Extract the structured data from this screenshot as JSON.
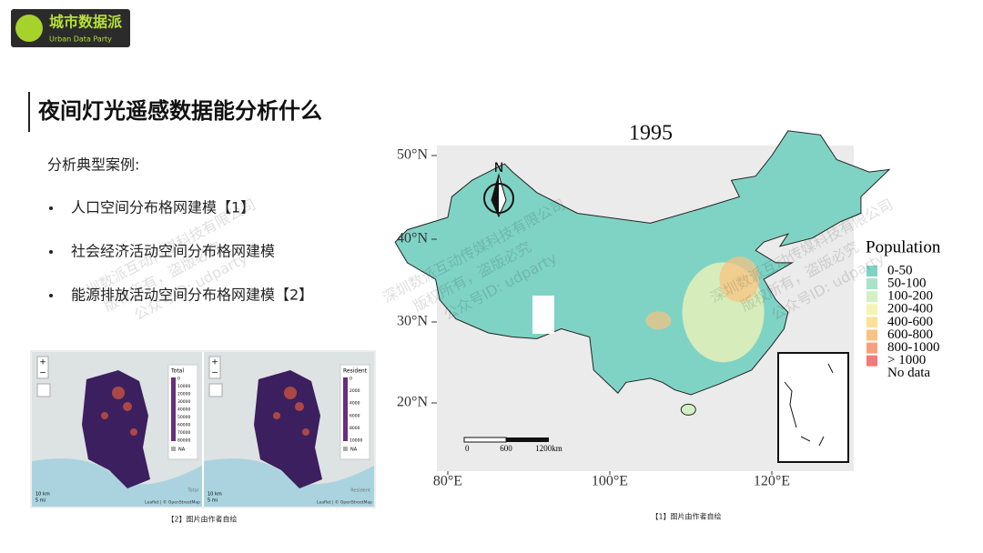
{
  "logo": {
    "name": "城市数据派",
    "sub": "Urban Data Party"
  },
  "title": "夜间灯光遥感数据能分析什么",
  "intro": "分析典型案例:",
  "bullets": [
    "人口空间分布格网建模【1】",
    "社会经济活动空间分布格网建模",
    "能源排放活动空间分布格网建模【2】"
  ],
  "watermark": [
    "深圳数派互动传媒科技有限公司",
    "版权所有，盗版必究",
    "公众号ID: udparty"
  ],
  "left_figure": {
    "panels": [
      {
        "legend_title": "Total",
        "legend_ticks": [
          "0",
          "10000",
          "20000",
          "30000",
          "40000",
          "50000",
          "60000",
          "70000",
          "80000"
        ],
        "na": "NA",
        "scale": [
          "10 km",
          "5 mi"
        ],
        "attribution": "Leaflet | © OpenStreetMap",
        "tag": "Total"
      },
      {
        "legend_title": "Resident",
        "legend_ticks": [
          "0",
          "2000",
          "4000",
          "6000",
          "8000",
          "10000"
        ],
        "na": "NA",
        "scale": [
          "10 km",
          "5 mi"
        ],
        "attribution": "Leaflet | © OpenStreetMap",
        "tag": "Resident"
      }
    ],
    "caption": "【2】图片由作者自绘"
  },
  "main_map": {
    "title": "1995",
    "north": "N",
    "yticks": [
      "50°N",
      "40°N",
      "30°N",
      "20°N"
    ],
    "xticks": [
      "80°E",
      "100°E",
      "120°E"
    ],
    "scale_labels": [
      "0",
      "600",
      "1200km"
    ],
    "legend_title": "Population",
    "legend": [
      {
        "label": "0-50",
        "color": "#7fd3c5"
      },
      {
        "label": "50-100",
        "color": "#a8e2c8"
      },
      {
        "label": "100-200",
        "color": "#d3f0c3"
      },
      {
        "label": "200-400",
        "color": "#f3f4b6"
      },
      {
        "label": "400-600",
        "color": "#fbe298"
      },
      {
        "label": "600-800",
        "color": "#f9c27f"
      },
      {
        "label": "800-1000",
        "color": "#f6a07d"
      },
      {
        "label": "> 1000",
        "color": "#f27a7a"
      },
      {
        "label": "No data"
      }
    ],
    "caption": "【1】图片由作者自绘"
  }
}
